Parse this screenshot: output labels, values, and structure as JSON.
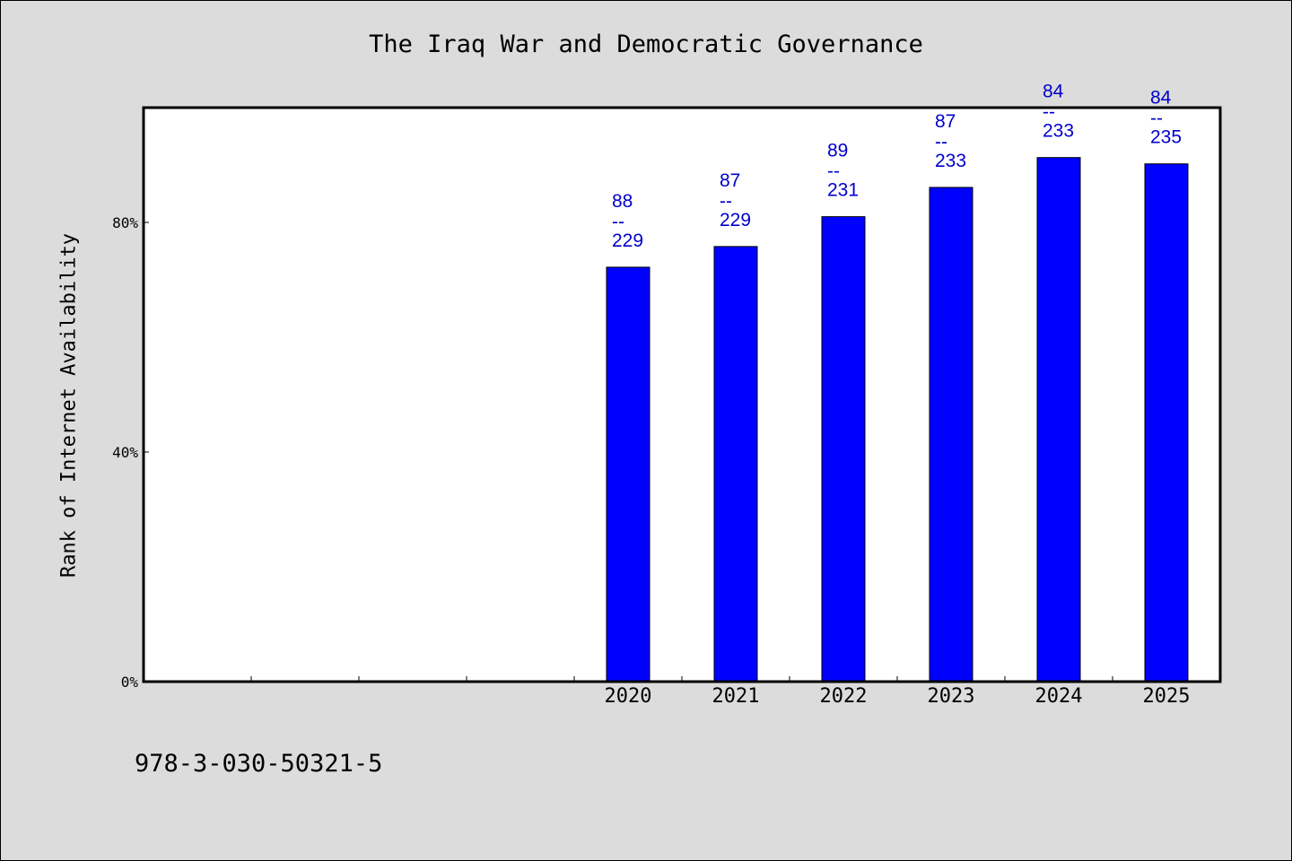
{
  "title": "The Iraq War and Democratic Governance",
  "footer_id": "978-3-030-50321-5",
  "colors": {
    "bar_fill": "#0000ff",
    "label_color": "#0000cc",
    "background": "#dcdcdc",
    "plot_background": "#ffffff"
  },
  "chart_data": {
    "type": "bar",
    "title": "The Iraq War and Democratic Governance",
    "ylabel": "Rank of Internet Availability",
    "xlabel": "",
    "ylim": [
      0,
      100
    ],
    "y_ticks": [
      {
        "value": 0,
        "label": "0%"
      },
      {
        "value": 40,
        "label": "40%"
      },
      {
        "value": 80,
        "label": "80%"
      }
    ],
    "x_slots": 10,
    "categories": [
      "2020",
      "2021",
      "2022",
      "2023",
      "2024",
      "2025"
    ],
    "category_slot_start": 4,
    "values": [
      72.2,
      75.8,
      81.0,
      86.1,
      91.3,
      90.2
    ],
    "data_labels": [
      {
        "rank": "88",
        "sep": "--",
        "total": "229"
      },
      {
        "rank": "87",
        "sep": "--",
        "total": "229"
      },
      {
        "rank": "89",
        "sep": "--",
        "total": "231"
      },
      {
        "rank": "87",
        "sep": "--",
        "total": "233"
      },
      {
        "rank": "84",
        "sep": "--",
        "total": "233"
      },
      {
        "rank": "84",
        "sep": "--",
        "total": "235"
      }
    ],
    "grid": false,
    "legend": "none"
  }
}
